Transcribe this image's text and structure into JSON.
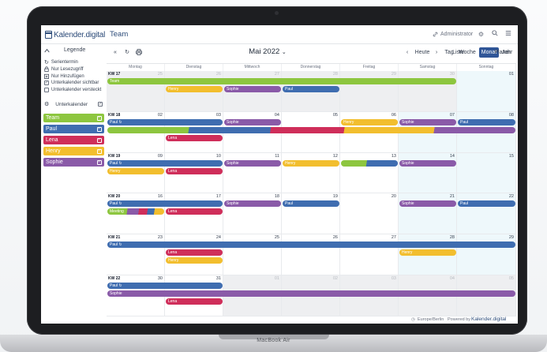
{
  "device": {
    "label": "MacBook Air"
  },
  "colors": {
    "team": "#8dc63f",
    "paul": "#3f6db0",
    "lena": "#cf2e5a",
    "henry": "#f2be2e",
    "sophie": "#8a5aa8",
    "brand": "#2b4a78",
    "accent": "#2f5597"
  },
  "header": {
    "logo_text": "Kalender.digital",
    "title": "Team",
    "admin_label": "Administrator",
    "icons": [
      "settings-icon",
      "search-icon",
      "menu-icon"
    ]
  },
  "sidebar": {
    "legend_title": "Legende",
    "legend_items": [
      {
        "icon": "repeat-icon",
        "label": "Serientermin"
      },
      {
        "icon": "lock-icon",
        "label": "Nur Lesezugriff"
      },
      {
        "icon": "calendar-plus-icon",
        "label": "Nur Hinzufügen"
      },
      {
        "icon": "checkbox-checked-icon",
        "label": "Unterkalender sichtbar"
      },
      {
        "icon": "checkbox-empty-icon",
        "label": "Unterkalender versteckt"
      }
    ],
    "subcal_title": "Unterkalender",
    "calendars": [
      {
        "label": "Team",
        "color": "#8dc63f"
      },
      {
        "label": "Paul",
        "color": "#3f6db0"
      },
      {
        "label": "Lena",
        "color": "#cf2e5a"
      },
      {
        "label": "Henry",
        "color": "#f2be2e"
      },
      {
        "label": "Sophie",
        "color": "#8a5aa8"
      }
    ]
  },
  "toolbar": {
    "prev_double": "«",
    "refresh": "↻",
    "print": "⎙",
    "month_label": "Mai 2022",
    "prev": "‹",
    "today": "Heute",
    "next": "›",
    "views": [
      "Tag",
      "Woche",
      "Monat",
      "Jahr",
      "Liste",
      "Planer"
    ],
    "active_view": "Monat"
  },
  "weekdays": [
    "Montag",
    "Dienstag",
    "Mittwoch",
    "Donnerstag",
    "Freitag",
    "Samstag",
    "Sonntag"
  ],
  "weeks": [
    {
      "kw": "KW 17",
      "days": [
        "25",
        "26",
        "27",
        "28",
        "29",
        "30",
        "01"
      ],
      "other": [
        true,
        true,
        true,
        true,
        true,
        true,
        false
      ]
    },
    {
      "kw": "KW 18",
      "days": [
        "02",
        "03",
        "04",
        "05",
        "06",
        "07",
        "08"
      ],
      "other": [
        false,
        false,
        false,
        false,
        false,
        false,
        false
      ]
    },
    {
      "kw": "KW 19",
      "days": [
        "09",
        "10",
        "11",
        "12",
        "13",
        "14",
        "15"
      ],
      "other": [
        false,
        false,
        false,
        false,
        false,
        false,
        false
      ]
    },
    {
      "kw": "KW 20",
      "days": [
        "16",
        "17",
        "18",
        "19",
        "20",
        "21",
        "22"
      ],
      "other": [
        false,
        false,
        false,
        false,
        false,
        false,
        false
      ]
    },
    {
      "kw": "KW 21",
      "days": [
        "23",
        "24",
        "25",
        "26",
        "27",
        "28",
        "29"
      ],
      "other": [
        false,
        false,
        false,
        false,
        false,
        false,
        false
      ]
    },
    {
      "kw": "KW 22",
      "days": [
        "30",
        "31",
        "01",
        "02",
        "03",
        "04",
        "05"
      ],
      "other": [
        false,
        false,
        true,
        true,
        true,
        true,
        true
      ]
    }
  ],
  "events": [
    {
      "week": 0,
      "start": 0,
      "span": 6,
      "row": 0,
      "label": "Team",
      "cal": "team"
    },
    {
      "week": 0,
      "start": 1,
      "span": 1,
      "row": 1,
      "label": "Henry",
      "cal": "henry"
    },
    {
      "week": 0,
      "start": 2,
      "span": 1,
      "row": 1,
      "label": "Sophie",
      "cal": "sophie"
    },
    {
      "week": 0,
      "start": 3,
      "span": 1,
      "row": 1,
      "label": "Paul",
      "cal": "paul"
    },
    {
      "week": 1,
      "start": 0,
      "span": 2,
      "row": 0,
      "label": "Paul ↻",
      "cal": "paul"
    },
    {
      "week": 1,
      "start": 2,
      "span": 1,
      "row": 0,
      "label": "Sophie",
      "cal": "sophie"
    },
    {
      "week": 1,
      "start": 4,
      "span": 1,
      "row": 0,
      "label": "Henry",
      "cal": "henry"
    },
    {
      "week": 1,
      "start": 5,
      "span": 1,
      "row": 0,
      "label": "Sophie",
      "cal": "sophie"
    },
    {
      "week": 1,
      "start": 6,
      "span": 1,
      "row": 0,
      "label": "Paul",
      "cal": "paul"
    },
    {
      "week": 1,
      "start": 0,
      "span": 7,
      "row": 1,
      "label": "",
      "cal": "multi"
    },
    {
      "week": 1,
      "start": 1,
      "span": 1,
      "row": 2,
      "label": "Lena",
      "cal": "lena"
    },
    {
      "week": 2,
      "start": 0,
      "span": 2,
      "row": 0,
      "label": "Paul ↻",
      "cal": "paul"
    },
    {
      "week": 2,
      "start": 2,
      "span": 1,
      "row": 0,
      "label": "Sophie",
      "cal": "sophie"
    },
    {
      "week": 2,
      "start": 3,
      "span": 1,
      "row": 0,
      "label": "Henry",
      "cal": "henry"
    },
    {
      "week": 2,
      "start": 4,
      "span": 1,
      "row": 0,
      "label": "",
      "cal": "teampaul"
    },
    {
      "week": 2,
      "start": 5,
      "span": 1,
      "row": 0,
      "label": "Sophie",
      "cal": "sophie"
    },
    {
      "week": 2,
      "start": 0,
      "span": 1,
      "row": 1,
      "label": "Henry",
      "cal": "henry"
    },
    {
      "week": 2,
      "start": 1,
      "span": 1,
      "row": 1,
      "label": "Lena",
      "cal": "lena"
    },
    {
      "week": 3,
      "start": 0,
      "span": 2,
      "row": 0,
      "label": "Paul ↻",
      "cal": "paul"
    },
    {
      "week": 3,
      "start": 2,
      "span": 1,
      "row": 0,
      "label": "Sophie",
      "cal": "sophie"
    },
    {
      "week": 3,
      "start": 3,
      "span": 1,
      "row": 0,
      "label": "Paul",
      "cal": "paul"
    },
    {
      "week": 3,
      "start": 5,
      "span": 1,
      "row": 0,
      "label": "Sophie",
      "cal": "sophie"
    },
    {
      "week": 3,
      "start": 6,
      "span": 1,
      "row": 0,
      "label": "Paul",
      "cal": "paul"
    },
    {
      "week": 3,
      "start": 0,
      "span": 1,
      "row": 1,
      "label": "Meeting",
      "cal": "meeting"
    },
    {
      "week": 3,
      "start": 1,
      "span": 1,
      "row": 1,
      "label": "Lena",
      "cal": "lena"
    },
    {
      "week": 4,
      "start": 0,
      "span": 7,
      "row": 0,
      "label": "Paul ↻",
      "cal": "paul"
    },
    {
      "week": 4,
      "start": 1,
      "span": 1,
      "row": 1,
      "label": "Lena",
      "cal": "lena"
    },
    {
      "week": 4,
      "start": 5,
      "span": 1,
      "row": 1,
      "label": "Henry",
      "cal": "henry"
    },
    {
      "week": 4,
      "start": 1,
      "span": 1,
      "row": 2,
      "label": "Henry",
      "cal": "henry"
    },
    {
      "week": 5,
      "start": 0,
      "span": 2,
      "row": 0,
      "label": "Paul ↻",
      "cal": "paul"
    },
    {
      "week": 5,
      "start": 0,
      "span": 7,
      "row": 1,
      "label": "Sophie",
      "cal": "sophie"
    },
    {
      "week": 5,
      "start": 1,
      "span": 1,
      "row": 2,
      "label": "Lena",
      "cal": "lena"
    }
  ],
  "footer": {
    "timezone": "Europe/Berlin",
    "powered_by": "Powered by",
    "brand": "Kalender.digital"
  }
}
